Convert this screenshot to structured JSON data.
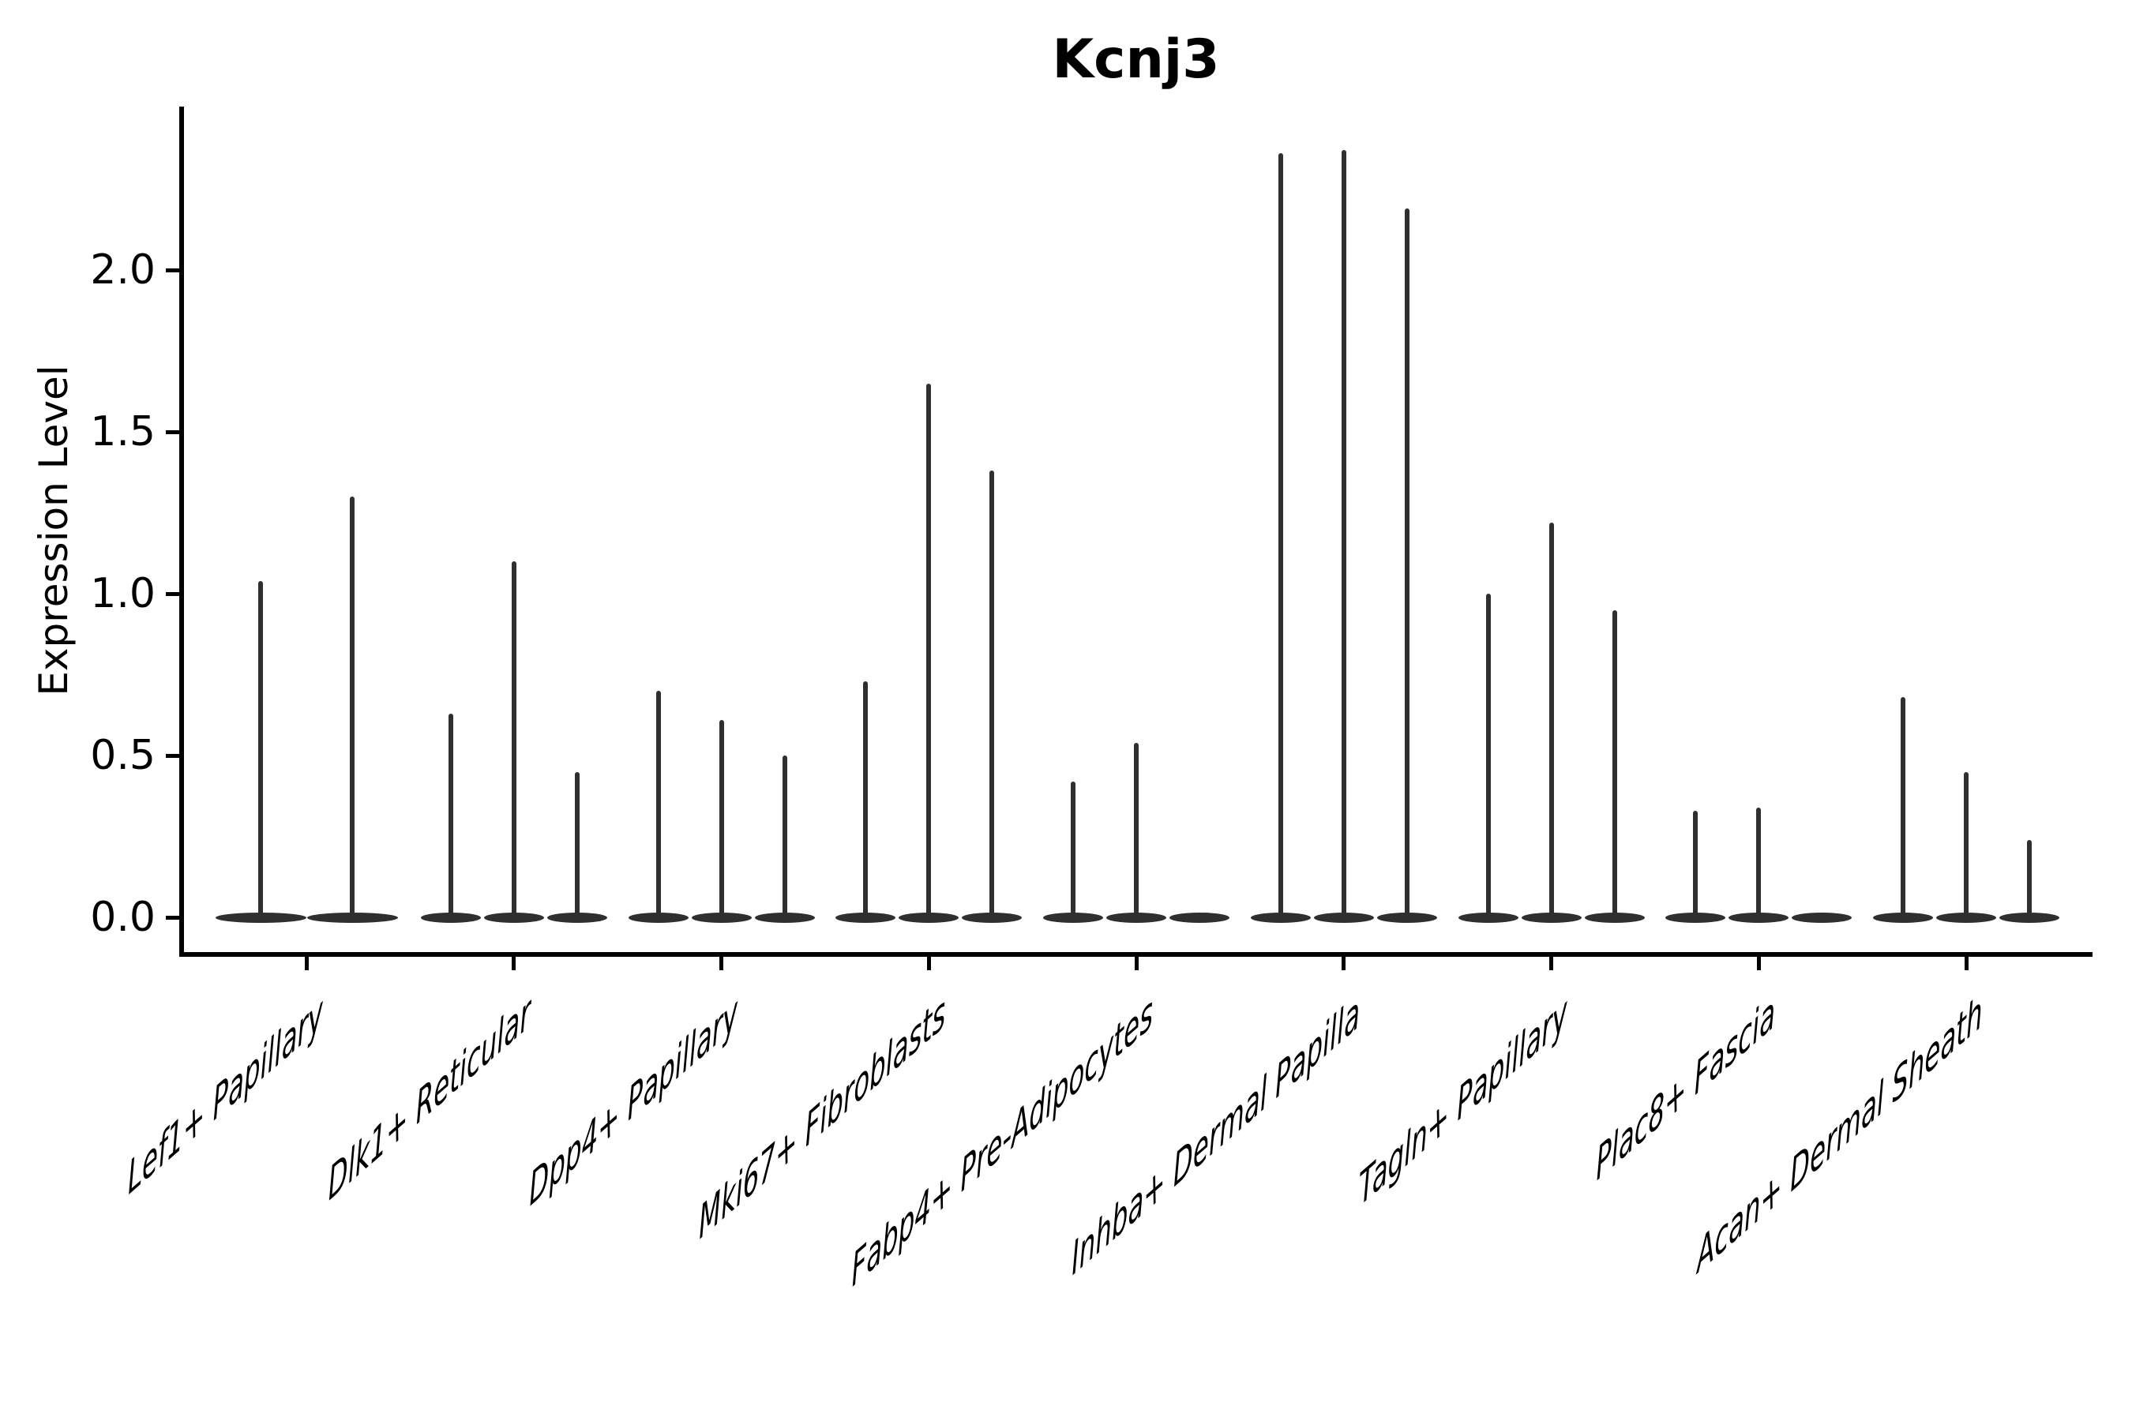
{
  "title": "Kcnj3",
  "y_axis": {
    "label": "Expression Level",
    "tick_labels": [
      "0.0",
      "0.5",
      "1.0",
      "1.5",
      "2.0"
    ],
    "tick_values": [
      0,
      0.5,
      1.0,
      1.5,
      2.0
    ],
    "range": [
      0,
      2.5
    ]
  },
  "x_axis": {
    "categories": [
      "Lef1+ Papillary",
      "Dlk1+ Reticular",
      "Dpp4+ Papillary",
      "Mki67+ Fibroblasts",
      "Fabp4+ Pre-Adipocytes",
      "Inhba+ Dermal Papilla",
      "Tagln+ Papillary",
      "Plac8+ Fascia",
      "Acan+ Dermal Sheath"
    ]
  },
  "chart_data": {
    "type": "violin",
    "title": "Kcnj3",
    "xlabel": "",
    "ylabel": "Expression Level",
    "ylim": [
      0,
      2.5
    ],
    "yticks": [
      0,
      0.5,
      1.0,
      1.5,
      2.0
    ],
    "grid": false,
    "legend": "none",
    "categories": [
      "Lef1+ Papillary",
      "Dlk1+ Reticular",
      "Dpp4+ Papillary",
      "Mki67+ Fibroblasts",
      "Fabp4+ Pre-Adipocytes",
      "Inhba+ Dermal Papilla",
      "Tagln+ Papillary",
      "Plac8+ Fascia",
      "Acan+ Dermal Sheath"
    ],
    "groups": [
      {
        "category": "Lef1+ Papillary",
        "violin_maxima": [
          1.04,
          1.3
        ]
      },
      {
        "category": "Dlk1+ Reticular",
        "violin_maxima": [
          0.63,
          1.1,
          0.45
        ]
      },
      {
        "category": "Dpp4+ Papillary",
        "violin_maxima": [
          0.7,
          0.61,
          0.5
        ]
      },
      {
        "category": "Mki67+ Fibroblasts",
        "violin_maxima": [
          0.73,
          1.65,
          1.38
        ]
      },
      {
        "category": "Fabp4+ Pre-Adipocytes",
        "violin_maxima": [
          0.42,
          0.54,
          0.0
        ]
      },
      {
        "category": "Inhba+ Dermal Papilla",
        "violin_maxima": [
          2.36,
          2.37,
          2.19
        ]
      },
      {
        "category": "Tagln+ Papillary",
        "violin_maxima": [
          1.0,
          1.22,
          0.95
        ]
      },
      {
        "category": "Plac8+ Fascia",
        "violin_maxima": [
          0.33,
          0.34,
          0.0
        ]
      },
      {
        "category": "Acan+ Dermal Sheath",
        "violin_maxima": [
          0.68,
          0.45,
          0.24
        ]
      }
    ],
    "note": "Each violin is flat at expression 0 with a thin vertical tail rising to its maximum value"
  },
  "style": {
    "violin_color": "#2f2f2f",
    "axis_color": "#000000",
    "text_color": "#000000",
    "background": "#ffffff"
  }
}
